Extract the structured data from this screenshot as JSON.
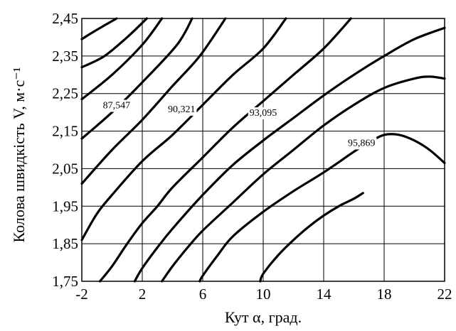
{
  "chart_data": {
    "type": "line",
    "title": "",
    "xlabel": "Кут  α, град.",
    "ylabel": "Колова швидкість  V, м·с⁻¹",
    "xlim": [
      -2,
      22
    ],
    "ylim": [
      1.75,
      2.45
    ],
    "x_ticks": [
      -2,
      2,
      6,
      10,
      14,
      18,
      22
    ],
    "x_tick_labels": [
      "-2",
      "2",
      "6",
      "10",
      "14",
      "18",
      "22"
    ],
    "y_ticks": [
      1.75,
      1.85,
      1.95,
      2.05,
      2.15,
      2.25,
      2.35,
      2.45
    ],
    "y_tick_labels": [
      "1,75",
      "1,85",
      "1,95",
      "2,05",
      "2,15",
      "2,25",
      "2,35",
      "2,45"
    ],
    "x_grid": [
      -2,
      2,
      6,
      10,
      14,
      18,
      22
    ],
    "y_grid": [
      1.75,
      1.85,
      1.95,
      2.05,
      2.15,
      2.25,
      2.35,
      2.45
    ],
    "grid": true,
    "contour_labels": [
      {
        "text": "87,547",
        "x": 0.3,
        "y": 2.22
      },
      {
        "text": "90,321",
        "x": 4.6,
        "y": 2.21
      },
      {
        "text": "93,095",
        "x": 10.0,
        "y": 2.2
      },
      {
        "text": "95,869",
        "x": 16.5,
        "y": 2.12
      }
    ],
    "series": [
      {
        "x": [
          -2,
          -1.0,
          0.3
        ],
        "y": [
          2.395,
          2.42,
          2.45
        ]
      },
      {
        "x": [
          -2,
          -0.5,
          1.0,
          2.3
        ],
        "y": [
          2.32,
          2.35,
          2.4,
          2.45
        ]
      },
      {
        "x": [
          -2,
          0.0,
          2.0,
          3.3
        ],
        "y": [
          2.235,
          2.3,
          2.38,
          2.45
        ]
      },
      {
        "x": [
          -2,
          0.0,
          2.0,
          4.3,
          5.3
        ],
        "y": [
          2.13,
          2.2,
          2.28,
          2.38,
          2.45
        ]
      },
      {
        "x": [
          -2,
          0.0,
          2.0,
          4.0,
          5.8,
          7.5
        ],
        "y": [
          2.01,
          2.1,
          2.18,
          2.27,
          2.35,
          2.45
        ]
      },
      {
        "x": [
          -2,
          -1.0,
          0.0,
          2.0,
          4.0,
          6.0,
          8.0,
          10.0,
          11.5
        ],
        "y": [
          1.86,
          1.93,
          1.98,
          2.07,
          2.14,
          2.22,
          2.3,
          2.37,
          2.45
        ]
      },
      {
        "x": [
          -0.8,
          0.0,
          1.0,
          2.0,
          3.0,
          4.0,
          6.0,
          8.0,
          10.0,
          12.0,
          14.0,
          15.8
        ],
        "y": [
          1.75,
          1.79,
          1.85,
          1.905,
          1.95,
          2.0,
          2.08,
          2.16,
          2.23,
          2.3,
          2.37,
          2.45
        ]
      },
      {
        "x": [
          1.5,
          2.0,
          3.0,
          4.0,
          6.0,
          8.0,
          10.0,
          12.0,
          14.0,
          16.0,
          18.0,
          20.0,
          22.0
        ],
        "y": [
          1.75,
          1.785,
          1.84,
          1.89,
          1.98,
          2.06,
          2.125,
          2.185,
          2.245,
          2.3,
          2.35,
          2.395,
          2.425
        ]
      },
      {
        "x": [
          3.3,
          4.0,
          5.0,
          6.0,
          8.0,
          10.0,
          12.0,
          14.0,
          16.0,
          18.0,
          20.0,
          21.0,
          22.0
        ],
        "y": [
          1.75,
          1.79,
          1.84,
          1.885,
          1.96,
          2.035,
          2.1,
          2.165,
          2.22,
          2.265,
          2.29,
          2.295,
          2.29
        ]
      },
      {
        "x": [
          5.8,
          6.0,
          7.0,
          8.0,
          10.0,
          12.0,
          14.0,
          16.0,
          17.0,
          18.0,
          19.0,
          20.0,
          21.0,
          22.0
        ],
        "y": [
          1.75,
          1.765,
          1.82,
          1.87,
          1.935,
          1.99,
          2.04,
          2.095,
          2.12,
          2.14,
          2.14,
          2.125,
          2.1,
          2.065
        ]
      },
      {
        "x": [
          9.8,
          10.0,
          11.0,
          12.0,
          13.0,
          14.0,
          15.0,
          16.0,
          16.6
        ],
        "y": [
          1.75,
          1.77,
          1.82,
          1.86,
          1.895,
          1.925,
          1.95,
          1.97,
          1.985
        ]
      }
    ]
  }
}
